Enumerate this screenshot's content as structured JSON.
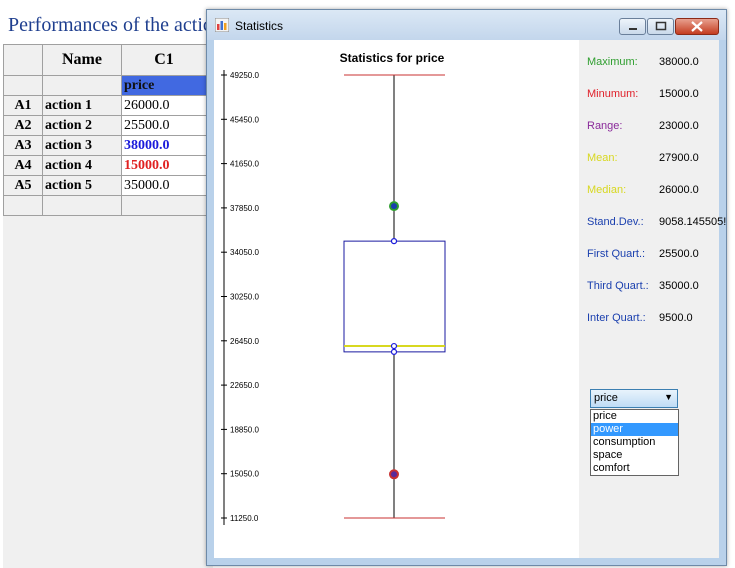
{
  "background": {
    "title": "Performances of the actic",
    "columns": [
      "Name",
      "C1"
    ],
    "criterion": "price",
    "rows": [
      {
        "id": "A1",
        "name": "action 1",
        "value": "26000.0",
        "color": "#000000"
      },
      {
        "id": "A2",
        "name": "action 2",
        "value": "25500.0",
        "color": "#000000"
      },
      {
        "id": "A3",
        "name": "action 3",
        "value": "38000.0",
        "color": "#1a1adb"
      },
      {
        "id": "A4",
        "name": "action 4",
        "value": "15000.0",
        "color": "#e02020"
      },
      {
        "id": "A5",
        "name": "action 5",
        "value": "35000.0",
        "color": "#000000"
      }
    ]
  },
  "window": {
    "title": "Statistics",
    "chart_title": "Statistics for  price"
  },
  "stats": [
    {
      "label": "Maximum:",
      "value": "38000.0",
      "color": "#2e9e2e"
    },
    {
      "label": "Minumum:",
      "value": "15000.0",
      "color": "#e0202a"
    },
    {
      "label": "Range:",
      "value": "23000.0",
      "color": "#8a2a9a"
    },
    {
      "label": "Mean:",
      "value": "27900.0",
      "color": "#d8d820"
    },
    {
      "label": "Median:",
      "value": "26000.0",
      "color": "#d8d820"
    },
    {
      "label": "Stand.Dev.:",
      "value": "9058.145505!",
      "color": "#1a3fae"
    },
    {
      "label": "First Quart.:",
      "value": "25500.0",
      "color": "#1a3fae"
    },
    {
      "label": "Third Quart.:",
      "value": "35000.0",
      "color": "#1a3fae"
    },
    {
      "label": "Inter Quart.:",
      "value": "9500.0",
      "color": "#1a3fae"
    }
  ],
  "selector": {
    "selected": "price",
    "options": [
      "price",
      "power",
      "consumption",
      "space",
      "comfort"
    ],
    "highlighted": "power"
  },
  "chart_data": {
    "type": "box",
    "title": "Statistics for  price",
    "ylim": [
      11250,
      49250
    ],
    "y_ticks": [
      "49250.0",
      "45450.0",
      "41650.0",
      "37850.0",
      "34050.0",
      "30250.0",
      "26450.0",
      "22650.0",
      "18850.0",
      "15050.0",
      "11250.0"
    ],
    "whisker_top": 49250,
    "whisker_bottom": 11250,
    "q1": 25500,
    "q3": 35000,
    "median": 26000,
    "mean": 27900,
    "max": 38000,
    "min": 15000,
    "points": [
      38000,
      35000,
      26000,
      25500,
      15000
    ]
  }
}
